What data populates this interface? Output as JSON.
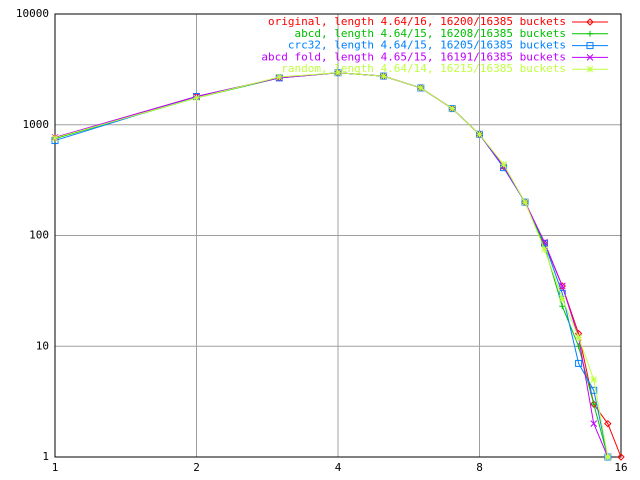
{
  "chart_data": {
    "type": "line",
    "log_x": true,
    "log_y": true,
    "grid": true,
    "x": [
      1,
      2,
      3,
      4,
      5,
      6,
      7,
      8,
      9,
      10,
      11,
      12,
      13,
      14,
      15,
      16
    ],
    "xlim": [
      1,
      16
    ],
    "xticks": [
      1,
      2,
      4,
      8,
      16
    ],
    "ylim": [
      1,
      10000
    ],
    "yticks": [
      1,
      10,
      100,
      1000,
      10000
    ],
    "legend": "top-right",
    "series": [
      {
        "name": "original, length 4.64/16, 16200/16385 buckets",
        "color": "#ff0000",
        "values": [
          760,
          1800,
          2650,
          2950,
          2750,
          2150,
          1400,
          820,
          420,
          200,
          85,
          35,
          13,
          3,
          2,
          1
        ]
      },
      {
        "name": "abcd, length 4.64/15, 16208/16385 buckets",
        "color": "#00c000",
        "values": [
          750,
          1750,
          2650,
          2950,
          2750,
          2150,
          1400,
          820,
          420,
          200,
          80,
          23,
          10,
          3,
          1,
          null
        ]
      },
      {
        "name": "crc32, length 4.64/15, 16205/16385 buckets",
        "color": "#0080ff",
        "values": [
          720,
          1800,
          2650,
          2950,
          2750,
          2150,
          1400,
          820,
          410,
          200,
          85,
          30,
          7,
          4,
          1,
          null
        ]
      },
      {
        "name": "abcd fold, length 4.65/15, 16191/16385 buckets",
        "color": "#c000ff",
        "values": [
          770,
          1800,
          2650,
          2950,
          2750,
          2150,
          1400,
          820,
          420,
          200,
          87,
          35,
          12,
          2,
          1,
          null
        ]
      },
      {
        "name": "random, length 4.64/14, 16215/16385 buckets",
        "color": "#c0ff40",
        "values": [
          760,
          1750,
          2700,
          2950,
          2750,
          2150,
          1400,
          820,
          440,
          200,
          75,
          27,
          12,
          5,
          1,
          null
        ]
      }
    ]
  }
}
